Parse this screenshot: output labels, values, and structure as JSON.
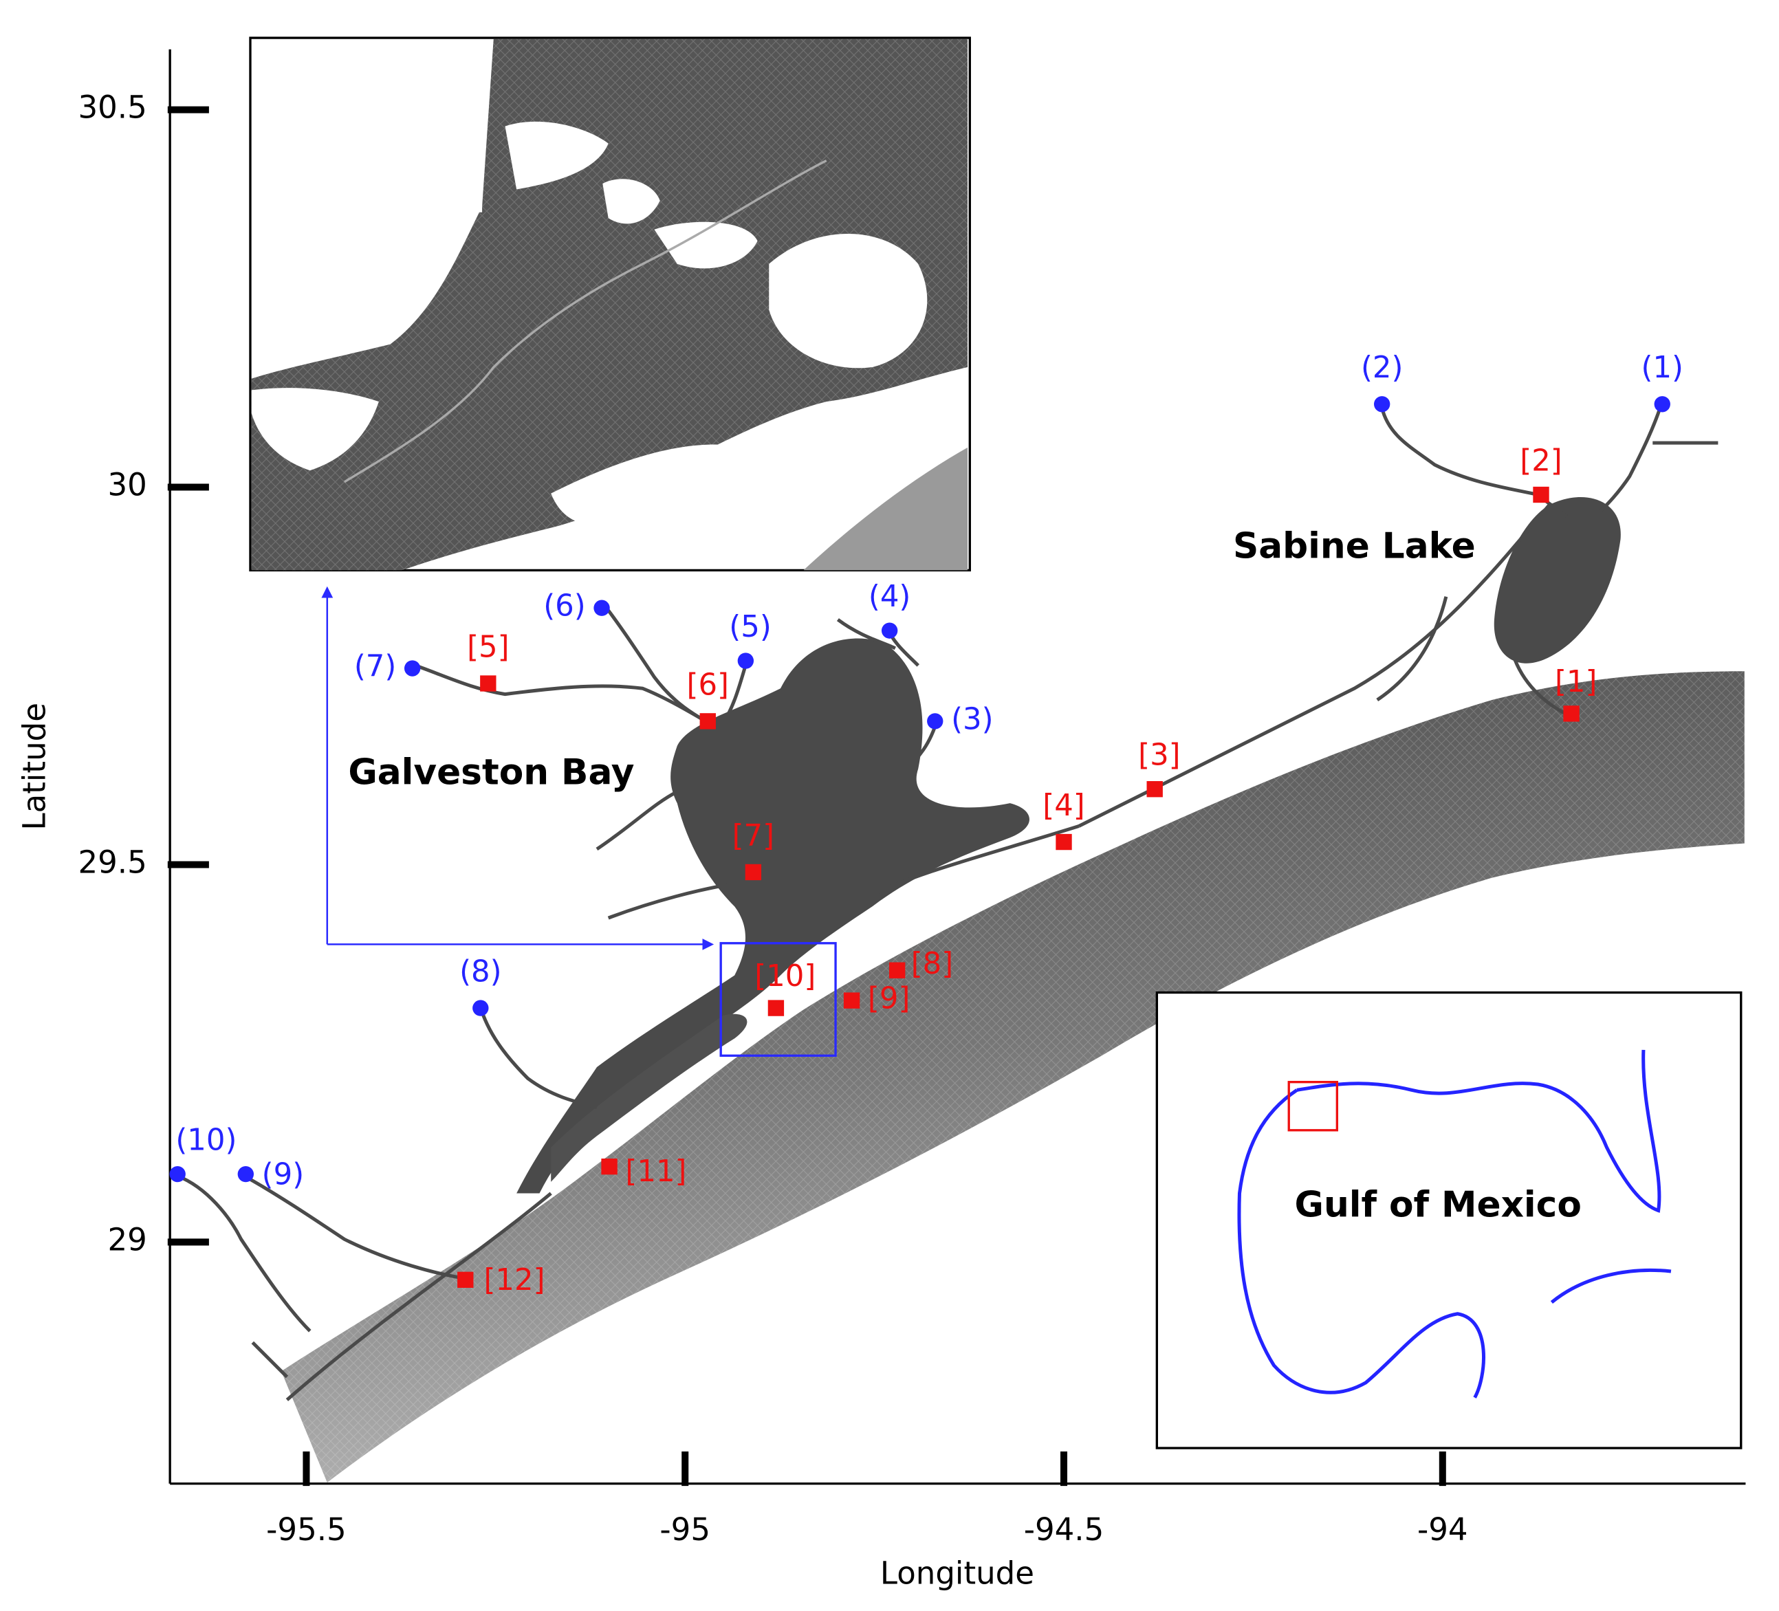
{
  "chart_data": {
    "type": "map",
    "xlabel": "Longitude",
    "ylabel": "Latitude",
    "xlim": [
      -95.68,
      -93.6
    ],
    "ylim": [
      28.68,
      30.58
    ],
    "xticks": [
      -95.5,
      -95.0,
      -94.5,
      -94.0
    ],
    "yticks": [
      29.0,
      29.5,
      30.0,
      30.5
    ],
    "annotations": [
      "Galveston Bay",
      "Sabine Lake",
      "Gulf of Mexico"
    ],
    "series": [
      {
        "marker": "circle",
        "color": "#2424ff",
        "labels": [
          "(1)",
          "(2)",
          "(3)",
          "(4)",
          "(5)",
          "(6)",
          "(7)",
          "(8)",
          "(9)",
          "(10)"
        ],
        "x": [
          -93.71,
          -94.08,
          -94.67,
          -94.73,
          -94.92,
          -95.11,
          -95.36,
          -95.27,
          -95.58,
          -95.67
        ],
        "y": [
          30.11,
          30.11,
          29.69,
          29.81,
          29.77,
          29.84,
          29.76,
          29.31,
          29.09,
          29.09
        ]
      },
      {
        "marker": "square",
        "color": "#ee1111",
        "labels": [
          "[1]",
          "[2]",
          "[3]",
          "[4]",
          "[5]",
          "[6]",
          "[7]",
          "[8]",
          "[9]",
          "[10]",
          "[11]",
          "[12]"
        ],
        "x": [
          -93.83,
          -93.87,
          -94.38,
          -94.5,
          -95.26,
          -94.97,
          -94.91,
          -94.72,
          -94.78,
          -94.88,
          -95.1,
          -95.29
        ],
        "y": [
          29.7,
          29.99,
          29.6,
          29.53,
          29.74,
          29.69,
          29.49,
          29.36,
          29.32,
          29.31,
          29.1,
          28.95
        ]
      }
    ]
  }
}
